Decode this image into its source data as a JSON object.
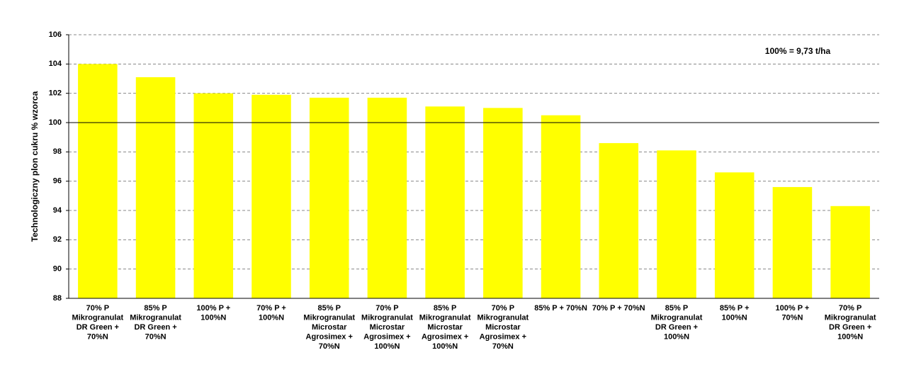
{
  "chart_data": {
    "type": "bar",
    "y_label": "Technologiczny plon cukru % wzorca",
    "annotation": "100% = 9,73 t/ha",
    "categories": [
      [
        "70% P",
        "Mikrogranulat",
        "DR Green +",
        "70%N"
      ],
      [
        "85% P",
        "Mikrogranulat",
        "DR Green +",
        "70%N"
      ],
      [
        "100% P +",
        "100%N"
      ],
      [
        "70% P +",
        "100%N"
      ],
      [
        "85% P",
        "Mikrogranulat",
        "Microstar",
        "Agrosimex +",
        "70%N"
      ],
      [
        "70% P",
        "Mikrogranulat",
        "Microstar",
        "Agrosimex +",
        "100%N"
      ],
      [
        "85% P",
        "Mikrogranulat",
        "Microstar",
        "Agrosimex +",
        "100%N"
      ],
      [
        "70% P",
        "Mikrogranulat",
        "Microstar",
        "Agrosimex +",
        "70%N"
      ],
      [
        "85% P + 70%N"
      ],
      [
        "70% P + 70%N"
      ],
      [
        "85% P",
        "Mikrogranulat",
        "DR Green +",
        "100%N"
      ],
      [
        "85% P +",
        "100%N"
      ],
      [
        "100% P +",
        "70%N"
      ],
      [
        "70% P",
        "Mikrogranulat",
        "DR Green +",
        "100%N"
      ]
    ],
    "values": [
      104.0,
      103.1,
      102.0,
      101.9,
      101.7,
      101.7,
      101.1,
      101.0,
      100.5,
      98.6,
      98.1,
      96.6,
      95.6,
      94.3
    ],
    "color": "#ffff00",
    "ylim": [
      88,
      106
    ],
    "yticks": [
      88,
      90,
      92,
      94,
      96,
      98,
      100,
      102,
      104,
      106
    ],
    "reference_line": 100,
    "grid": true
  }
}
